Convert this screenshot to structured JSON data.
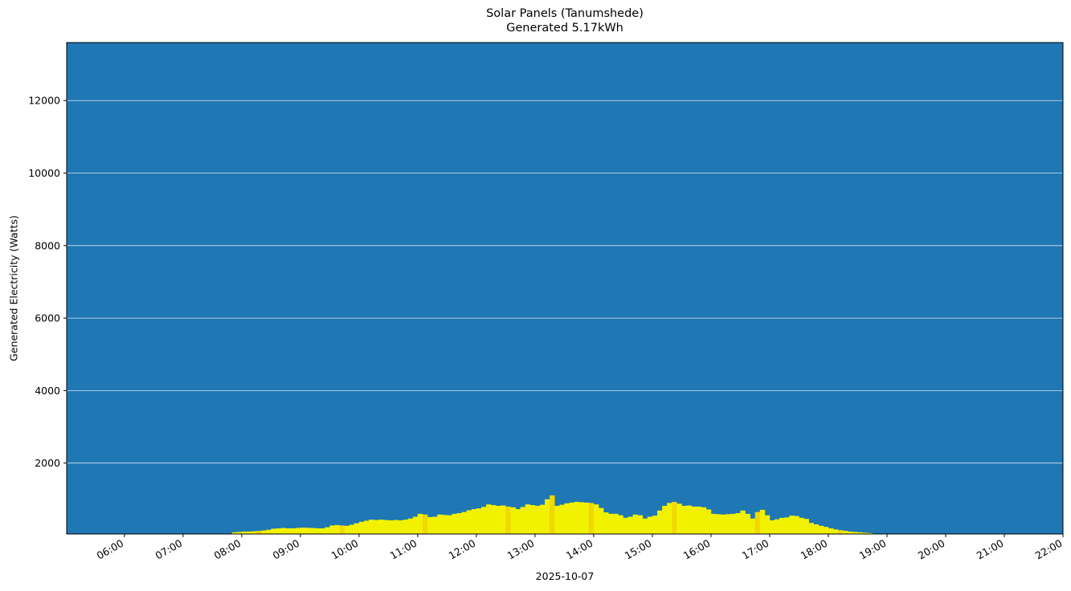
{
  "chart_data": {
    "type": "bar",
    "title": "Solar Panels (Tanumshede)",
    "subtitle": "Generated 5.17kWh",
    "xlabel": "2025-10-07",
    "ylabel": "Generated Electricity (Watts)",
    "ylim": [
      44,
      13600
    ],
    "xlim": [
      "05:01",
      "22:00"
    ],
    "yticks": [
      2000,
      4000,
      6000,
      8000,
      10000,
      12000
    ],
    "xticks": [
      "06:00",
      "07:00",
      "08:00",
      "09:00",
      "10:00",
      "11:00",
      "12:00",
      "13:00",
      "14:00",
      "15:00",
      "16:00",
      "17:00",
      "18:00",
      "19:00",
      "20:00",
      "21:00",
      "22:00"
    ],
    "grid": "horizontal",
    "background_color": "#1f77b4",
    "bar_color": "#f2f200",
    "bar_color_alt": "#f0d800",
    "total_generated_kwh": 5.17,
    "x": [
      "07:50",
      "07:55",
      "08:00",
      "08:05",
      "08:10",
      "08:15",
      "08:20",
      "08:25",
      "08:30",
      "08:35",
      "08:40",
      "08:45",
      "08:50",
      "08:55",
      "09:00",
      "09:05",
      "09:10",
      "09:15",
      "09:20",
      "09:25",
      "09:30",
      "09:35",
      "09:40",
      "09:45",
      "09:50",
      "09:55",
      "10:00",
      "10:05",
      "10:10",
      "10:15",
      "10:20",
      "10:25",
      "10:30",
      "10:35",
      "10:40",
      "10:45",
      "10:50",
      "10:55",
      "11:00",
      "11:05",
      "11:10",
      "11:15",
      "11:20",
      "11:25",
      "11:30",
      "11:35",
      "11:40",
      "11:45",
      "11:50",
      "11:55",
      "12:00",
      "12:05",
      "12:10",
      "12:15",
      "12:20",
      "12:25",
      "12:30",
      "12:35",
      "12:40",
      "12:45",
      "12:50",
      "12:55",
      "13:00",
      "13:05",
      "13:10",
      "13:15",
      "13:20",
      "13:25",
      "13:30",
      "13:35",
      "13:40",
      "13:45",
      "13:50",
      "13:55",
      "14:00",
      "14:05",
      "14:10",
      "14:15",
      "14:20",
      "14:25",
      "14:30",
      "14:35",
      "14:40",
      "14:45",
      "14:50",
      "14:55",
      "15:00",
      "15:05",
      "15:10",
      "15:15",
      "15:20",
      "15:25",
      "15:30",
      "15:35",
      "15:40",
      "15:45",
      "15:50",
      "15:55",
      "16:00",
      "16:05",
      "16:10",
      "16:15",
      "16:20",
      "16:25",
      "16:30",
      "16:35",
      "16:40",
      "16:45",
      "16:50",
      "16:55",
      "17:00",
      "17:05",
      "17:10",
      "17:15",
      "17:20",
      "17:25",
      "17:30",
      "17:35",
      "17:40",
      "17:45",
      "17:50",
      "17:55",
      "18:00",
      "18:05",
      "18:10",
      "18:15",
      "18:20",
      "18:25",
      "18:30",
      "18:35",
      "18:40"
    ],
    "values": [
      90,
      100,
      110,
      110,
      120,
      130,
      140,
      160,
      190,
      200,
      210,
      200,
      200,
      210,
      220,
      215,
      210,
      200,
      200,
      230,
      280,
      290,
      280,
      270,
      300,
      340,
      380,
      410,
      440,
      430,
      440,
      430,
      420,
      430,
      420,
      440,
      470,
      520,
      600,
      580,
      510,
      520,
      580,
      570,
      560,
      600,
      620,
      650,
      700,
      730,
      750,
      790,
      860,
      840,
      820,
      830,
      800,
      780,
      730,
      790,
      860,
      840,
      820,
      850,
      1000,
      1110,
      820,
      850,
      890,
      910,
      930,
      920,
      910,
      900,
      860,
      760,
      640,
      600,
      600,
      560,
      490,
      520,
      580,
      560,
      470,
      520,
      550,
      690,
      820,
      900,
      930,
      880,
      820,
      830,
      800,
      800,
      780,
      720,
      600,
      590,
      580,
      590,
      600,
      620,
      690,
      600,
      470,
      650,
      710,
      560,
      420,
      450,
      490,
      500,
      550,
      540,
      490,
      460,
      350,
      310,
      270,
      240,
      200,
      170,
      150,
      130,
      110,
      100,
      90,
      80,
      70
    ]
  }
}
